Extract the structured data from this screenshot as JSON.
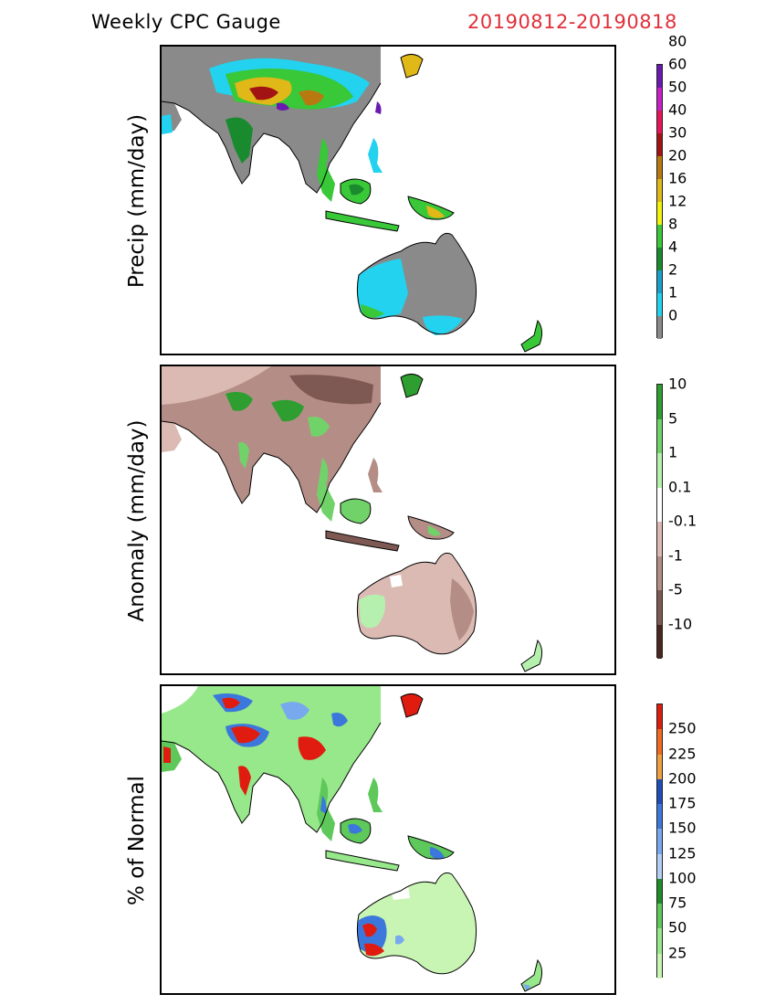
{
  "header": {
    "title": "Weekly CPC Gauge",
    "dates": "20190812-20190818",
    "dates_color": "#e0303a"
  },
  "panels": [
    {
      "key": "precip",
      "label": "Precip (mm/day)",
      "colorbar": {
        "colors": [
          "#8a8a8a",
          "#22d2ee",
          "#1a9fc8",
          "#1a8a2e",
          "#38c838",
          "#f2f20c",
          "#e0b818",
          "#b87a10",
          "#a21414",
          "#e8145a",
          "#c820c8",
          "#6a1ab0"
        ],
        "ticks": [
          "0",
          "1",
          "2",
          "4",
          "8",
          "12",
          "16",
          "20",
          "30",
          "40",
          "50",
          "60",
          "80"
        ]
      }
    },
    {
      "key": "anomaly",
      "label": "Anomaly (mm/day)",
      "colorbar": {
        "colors": [
          "#4a2620",
          "#7e5852",
          "#b48e86",
          "#dcbab4",
          "#ffffff",
          "#b6f0ae",
          "#72d26a",
          "#2e9e30"
        ],
        "ticks": [
          "-10",
          "-5",
          "-1",
          "-0.1",
          "0.1",
          "1",
          "5",
          "10"
        ]
      }
    },
    {
      "key": "percent",
      "label": "% of Normal",
      "colorbar": {
        "colors": [
          "#c8f5b4",
          "#96e88a",
          "#5ec85a",
          "#1e8c28",
          "#b4cef6",
          "#78a8ee",
          "#3c78dc",
          "#1e4cb8",
          "#f0a040",
          "#f06a20",
          "#e01c10"
        ],
        "ticks": [
          "25",
          "50",
          "75",
          "100",
          "125",
          "150",
          "175",
          "200",
          "225",
          "250"
        ]
      }
    }
  ]
}
